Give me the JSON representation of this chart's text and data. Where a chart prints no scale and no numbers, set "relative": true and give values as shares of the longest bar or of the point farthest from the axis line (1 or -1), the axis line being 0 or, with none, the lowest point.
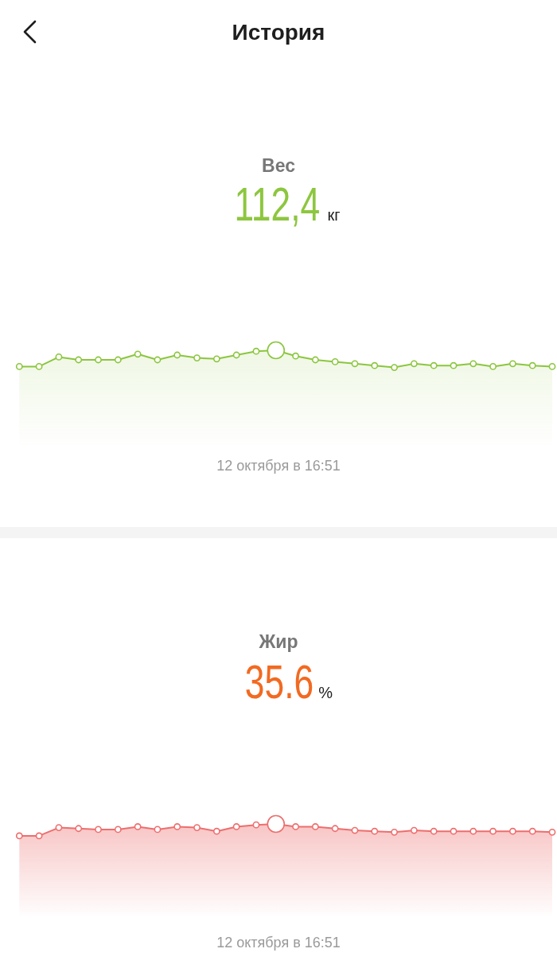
{
  "chart_data": [
    {
      "type": "area",
      "title": "Вес",
      "subtitle": "112,4",
      "ylabel": "кг",
      "annotations": [
        "История",
        "12 октября в 16:51"
      ],
      "relative": true,
      "marker": "circle",
      "categories": [
        null,
        null,
        null,
        null,
        null,
        null,
        null,
        null,
        null,
        null,
        null,
        null,
        null,
        null,
        null,
        null,
        null,
        null,
        null,
        null,
        null,
        null,
        null,
        null,
        null,
        null,
        null,
        null
      ],
      "series": [
        {
          "color": "#8cc63f",
          "values": [
            0.83,
            0.83,
            0.93,
            0.9,
            0.9,
            0.9,
            0.96,
            0.9,
            0.95,
            0.92,
            0.91,
            0.95,
            0.99,
            1,
            0.94,
            0.9,
            0.88,
            0.86,
            0.84,
            0.82,
            0.86,
            0.84,
            0.84,
            0.86,
            0.83,
            0.86,
            0.84,
            0.83
          ]
        }
      ]
    },
    {
      "type": "area",
      "title": "Жир",
      "subtitle": "35.6",
      "ylabel": "%",
      "annotations": [
        "12 октября в 16:51"
      ],
      "relative": true,
      "marker": "circle",
      "categories": [
        null,
        null,
        null,
        null,
        null,
        null,
        null,
        null,
        null,
        null,
        null,
        null,
        null,
        null,
        null,
        null,
        null,
        null,
        null,
        null,
        null,
        null,
        null,
        null,
        null,
        null,
        null,
        null
      ],
      "series": [
        {
          "color": "#ee6e6e",
          "values": [
            0.87,
            0.87,
            0.96,
            0.95,
            0.94,
            0.94,
            0.97,
            0.94,
            0.97,
            0.96,
            0.92,
            0.97,
            0.99,
            1,
            0.97,
            0.97,
            0.95,
            0.93,
            0.92,
            0.91,
            0.93,
            0.92,
            0.92,
            0.92,
            0.92,
            0.92,
            0.92,
            0.91
          ]
        }
      ]
    }
  ]
}
